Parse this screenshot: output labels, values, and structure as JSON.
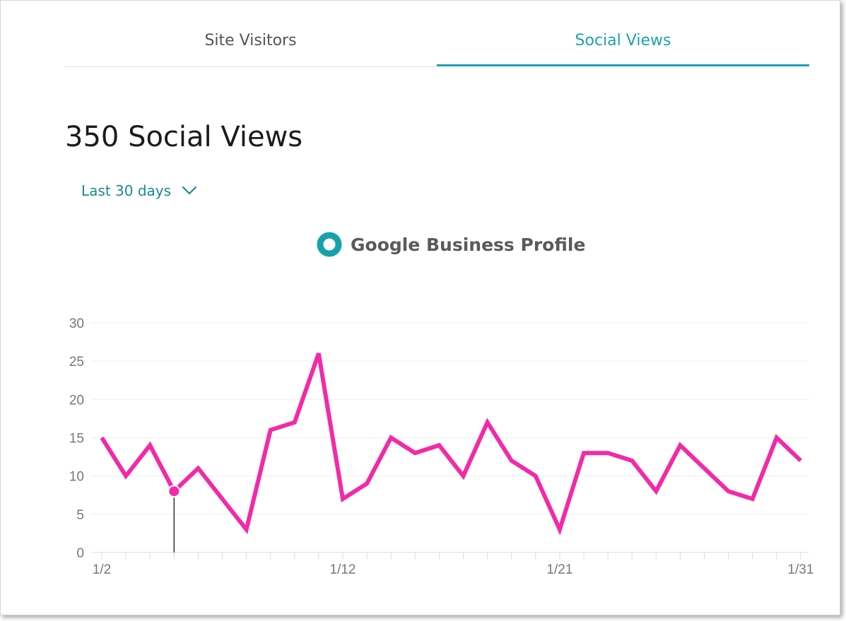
{
  "tabs": [
    {
      "label": "Site Visitors",
      "active": false
    },
    {
      "label": "Social Views",
      "active": true
    }
  ],
  "summary": {
    "title": "350 Social Views"
  },
  "range": {
    "selected": "Last 30 days"
  },
  "colors": {
    "accent": "#1aa3ad",
    "series": "#f22aa8",
    "legend": "#17a2ab",
    "grid": "#eeeeee",
    "tick": "#777777"
  },
  "icons": {
    "range_chevron": "chevron-down-icon",
    "legend_marker": "ring-marker-icon"
  },
  "chart_data": {
    "type": "line",
    "title": "",
    "xlabel": "",
    "ylabel": "",
    "ylim": [
      0,
      30
    ],
    "yticks": [
      0,
      5,
      10,
      15,
      20,
      25,
      30
    ],
    "xtick_labels": [
      "1/2",
      "1/12",
      "1/21",
      "1/31"
    ],
    "legend": "top-center",
    "grid": true,
    "x": [
      "1/2",
      "1/3",
      "1/4",
      "1/5",
      "1/6",
      "1/7",
      "1/8",
      "1/9",
      "1/10",
      "1/11",
      "1/12",
      "1/13",
      "1/14",
      "1/15",
      "1/16",
      "1/17",
      "1/18",
      "1/19",
      "1/20",
      "1/21",
      "1/22",
      "1/23",
      "1/24",
      "1/25",
      "1/26",
      "1/27",
      "1/28",
      "1/29",
      "1/30",
      "1/31"
    ],
    "series": [
      {
        "name": "Google Business Profile",
        "values": [
          15,
          10,
          14,
          8,
          11,
          7,
          3,
          16,
          17,
          26,
          7,
          9,
          15,
          13,
          14,
          10,
          17,
          12,
          10,
          3,
          13,
          13,
          12,
          8,
          14,
          11,
          8,
          7,
          15,
          12
        ]
      }
    ],
    "highlighted_index": 3
  }
}
